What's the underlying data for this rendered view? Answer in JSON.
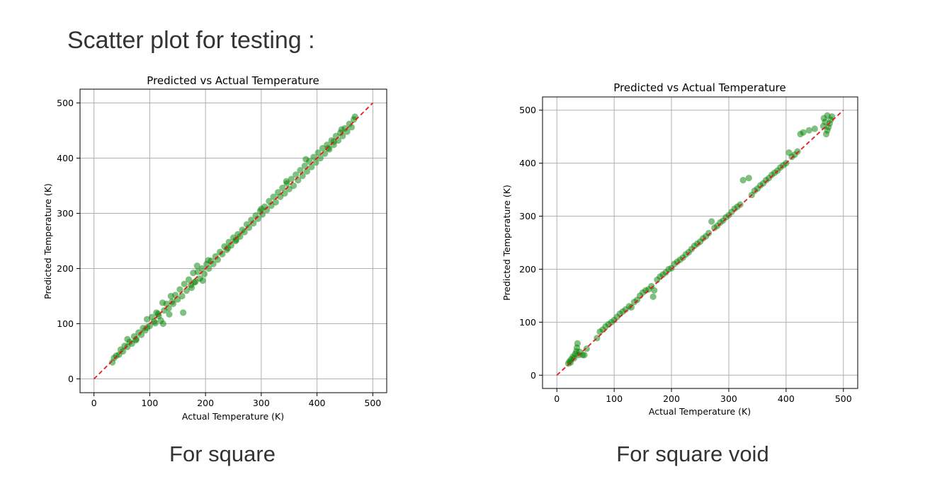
{
  "slide": {
    "heading": "Scatter plot for testing :",
    "captions": [
      "For square",
      "For square void"
    ]
  },
  "colors": {
    "points": "#008000",
    "diagonal": "#e41a1c",
    "grid": "#b0b0b0",
    "axes": "#000000"
  },
  "chart_data": [
    {
      "type": "scatter",
      "title": "Predicted vs Actual Temperature",
      "xlabel": "Actual Temperature (K)",
      "ylabel": "Predicted Temperature (K)",
      "xlim": [
        -25,
        525
      ],
      "ylim": [
        -25,
        525
      ],
      "xticks": [
        0,
        100,
        200,
        300,
        400,
        500
      ],
      "yticks": [
        0,
        100,
        200,
        300,
        400,
        500
      ],
      "grid": true,
      "reference_line": {
        "style": "dashed",
        "from": [
          0,
          0
        ],
        "to": [
          500,
          500
        ]
      },
      "series": [
        {
          "points": [
            [
              33,
              30
            ],
            [
              36,
              38
            ],
            [
              40,
              42
            ],
            [
              45,
              44
            ],
            [
              48,
              53
            ],
            [
              52,
              50
            ],
            [
              55,
              60
            ],
            [
              60,
              58
            ],
            [
              64,
              67
            ],
            [
              68,
              64
            ],
            [
              72,
              77
            ],
            [
              76,
              72
            ],
            [
              80,
              84
            ],
            [
              85,
              80
            ],
            [
              88,
              92
            ],
            [
              92,
              88
            ],
            [
              95,
              108
            ],
            [
              100,
              96
            ],
            [
              104,
              112
            ],
            [
              108,
              104
            ],
            [
              112,
              120
            ],
            [
              116,
              114
            ],
            [
              120,
              106
            ],
            [
              123,
              138
            ],
            [
              126,
              124
            ],
            [
              130,
              136
            ],
            [
              134,
              128
            ],
            [
              138,
              150
            ],
            [
              142,
              136
            ],
            [
              146,
              152
            ],
            [
              150,
              144
            ],
            [
              154,
              162
            ],
            [
              158,
              150
            ],
            [
              162,
              172
            ],
            [
              166,
              160
            ],
            [
              170,
              180
            ],
            [
              174,
              170
            ],
            [
              178,
              192
            ],
            [
              182,
              176
            ],
            [
              186,
              194
            ],
            [
              190,
              182
            ],
            [
              194,
              200
            ],
            [
              198,
              190
            ],
            [
              202,
              208
            ],
            [
              206,
              200
            ],
            [
              210,
              214
            ],
            [
              214,
              208
            ],
            [
              218,
              222
            ],
            [
              222,
              216
            ],
            [
              226,
              230
            ],
            [
              230,
              226
            ],
            [
              234,
              240
            ],
            [
              238,
              234
            ],
            [
              242,
              248
            ],
            [
              246,
              242
            ],
            [
              250,
              256
            ],
            [
              254,
              250
            ],
            [
              258,
              262
            ],
            [
              262,
              258
            ],
            [
              266,
              270
            ],
            [
              270,
              266
            ],
            [
              274,
              280
            ],
            [
              278,
              274
            ],
            [
              282,
              288
            ],
            [
              286,
              282
            ],
            [
              290,
              296
            ],
            [
              294,
              290
            ],
            [
              298,
              304
            ],
            [
              302,
              298
            ],
            [
              306,
              312
            ],
            [
              310,
              306
            ],
            [
              314,
              322
            ],
            [
              318,
              314
            ],
            [
              322,
              330
            ],
            [
              326,
              320
            ],
            [
              330,
              338
            ],
            [
              334,
              330
            ],
            [
              338,
              346
            ],
            [
              342,
              336
            ],
            [
              346,
              354
            ],
            [
              350,
              344
            ],
            [
              354,
              362
            ],
            [
              358,
              350
            ],
            [
              362,
              370
            ],
            [
              366,
              360
            ],
            [
              370,
              378
            ],
            [
              374,
              368
            ],
            [
              378,
              386
            ],
            [
              382,
              376
            ],
            [
              386,
              394
            ],
            [
              390,
              384
            ],
            [
              394,
              402
            ],
            [
              398,
              392
            ],
            [
              402,
              410
            ],
            [
              406,
              400
            ],
            [
              410,
              418
            ],
            [
              414,
              408
            ],
            [
              418,
              424
            ],
            [
              422,
              416
            ],
            [
              426,
              432
            ],
            [
              430,
              424
            ],
            [
              434,
              440
            ],
            [
              438,
              432
            ],
            [
              442,
              446
            ],
            [
              446,
              440
            ],
            [
              450,
              454
            ],
            [
              454,
              448
            ],
            [
              458,
              462
            ],
            [
              462,
              456
            ],
            [
              466,
              470
            ],
            [
              468,
              475
            ],
            [
              124,
              100
            ],
            [
              115,
              118
            ],
            [
              95,
              93
            ],
            [
              160,
              120
            ],
            [
              180,
              175
            ],
            [
              205,
              215
            ],
            [
              255,
              252
            ],
            [
              300,
              308
            ],
            [
              345,
              358
            ],
            [
              380,
              398
            ],
            [
              420,
              418
            ],
            [
              444,
              452
            ],
            [
              430,
              430
            ],
            [
              185,
              205
            ],
            [
              240,
              237
            ],
            [
              140,
              140
            ],
            [
              60,
              72
            ],
            [
              75,
              70
            ],
            [
              110,
              101
            ],
            [
              135,
              117
            ],
            [
              175,
              165
            ],
            [
              195,
              178
            ]
          ]
        }
      ]
    },
    {
      "type": "scatter",
      "title": "Predicted vs Actual Temperature",
      "xlabel": "Actual Temperature (K)",
      "ylabel": "Predicted Temperature (K)",
      "xlim": [
        -25,
        525
      ],
      "ylim": [
        -25,
        525
      ],
      "xticks": [
        0,
        100,
        200,
        300,
        400,
        500
      ],
      "yticks": [
        0,
        100,
        200,
        300,
        400,
        500
      ],
      "grid": true,
      "reference_line": {
        "style": "dashed",
        "from": [
          0,
          0
        ],
        "to": [
          500,
          500
        ]
      },
      "series": [
        {
          "points": [
            [
              20,
              22
            ],
            [
              22,
              26
            ],
            [
              24,
              24
            ],
            [
              25,
              30
            ],
            [
              28,
              35
            ],
            [
              30,
              32
            ],
            [
              32,
              40
            ],
            [
              34,
              45
            ],
            [
              35,
              52
            ],
            [
              36,
              60
            ],
            [
              38,
              38
            ],
            [
              40,
              44
            ],
            [
              45,
              38
            ],
            [
              48,
              38
            ],
            [
              52,
              50
            ],
            [
              70,
              70
            ],
            [
              75,
              82
            ],
            [
              80,
              86
            ],
            [
              85,
              92
            ],
            [
              90,
              96
            ],
            [
              95,
              100
            ],
            [
              100,
              104
            ],
            [
              105,
              110
            ],
            [
              110,
              116
            ],
            [
              115,
              120
            ],
            [
              120,
              124
            ],
            [
              126,
              130
            ],
            [
              130,
              128
            ],
            [
              135,
              138
            ],
            [
              140,
              142
            ],
            [
              145,
              150
            ],
            [
              150,
              156
            ],
            [
              155,
              160
            ],
            [
              160,
              162
            ],
            [
              165,
              168
            ],
            [
              168,
              148
            ],
            [
              170,
              160
            ],
            [
              175,
              180
            ],
            [
              180,
              186
            ],
            [
              185,
              190
            ],
            [
              190,
              194
            ],
            [
              195,
              200
            ],
            [
              200,
              202
            ],
            [
              205,
              210
            ],
            [
              210,
              214
            ],
            [
              215,
              218
            ],
            [
              220,
              222
            ],
            [
              225,
              228
            ],
            [
              230,
              232
            ],
            [
              235,
              238
            ],
            [
              240,
              244
            ],
            [
              245,
              248
            ],
            [
              250,
              252
            ],
            [
              255,
              258
            ],
            [
              260,
              262
            ],
            [
              265,
              268
            ],
            [
              270,
              290
            ],
            [
              275,
              278
            ],
            [
              280,
              282
            ],
            [
              285,
              288
            ],
            [
              290,
              292
            ],
            [
              295,
              298
            ],
            [
              300,
              302
            ],
            [
              305,
              308
            ],
            [
              310,
              314
            ],
            [
              315,
              318
            ],
            [
              320,
              322
            ],
            [
              325,
              368
            ],
            [
              335,
              372
            ],
            [
              340,
              340
            ],
            [
              345,
              348
            ],
            [
              350,
              352
            ],
            [
              355,
              358
            ],
            [
              360,
              362
            ],
            [
              365,
              368
            ],
            [
              370,
              372
            ],
            [
              375,
              378
            ],
            [
              380,
              382
            ],
            [
              385,
              386
            ],
            [
              390,
              392
            ],
            [
              395,
              396
            ],
            [
              400,
              400
            ],
            [
              405,
              420
            ],
            [
              410,
              412
            ],
            [
              415,
              416
            ],
            [
              420,
              422
            ],
            [
              425,
              455
            ],
            [
              430,
              458
            ],
            [
              440,
              462
            ],
            [
              450,
              465
            ],
            [
              465,
              470
            ],
            [
              468,
              478
            ],
            [
              470,
              455
            ],
            [
              472,
              462
            ],
            [
              474,
              468
            ],
            [
              476,
              475
            ],
            [
              478,
              482
            ],
            [
              480,
              488
            ],
            [
              472,
              490
            ],
            [
              466,
              485
            ]
          ]
        }
      ]
    }
  ]
}
